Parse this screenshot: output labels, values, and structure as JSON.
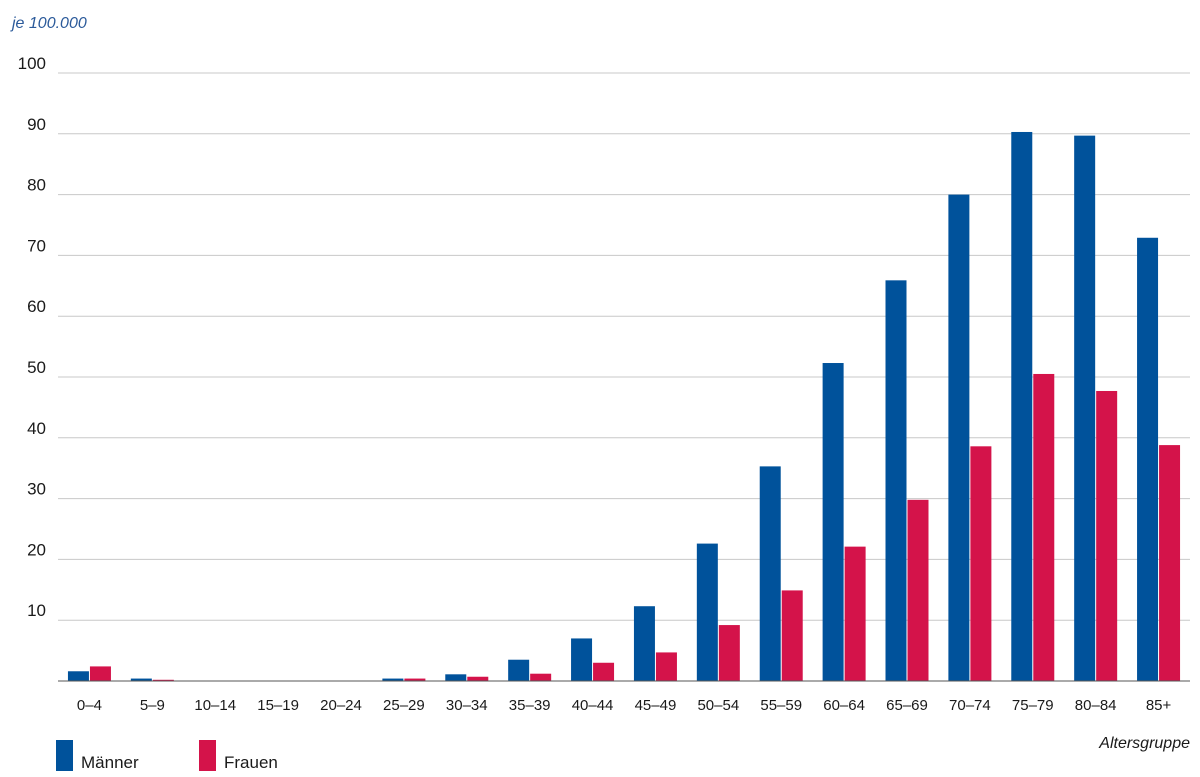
{
  "chart_data": {
    "type": "bar",
    "unit_label": "je 100.000",
    "xlabel": "Altersgruppe",
    "ylim": [
      0,
      100
    ],
    "yticks": [
      10,
      20,
      30,
      40,
      50,
      60,
      70,
      80,
      90,
      100
    ],
    "grid": true,
    "legend_position": "bottom-left",
    "categories": [
      "0–4",
      "5–9",
      "10–14",
      "15–19",
      "20–24",
      "25–29",
      "30–34",
      "35–39",
      "40–44",
      "45–49",
      "50–54",
      "55–59",
      "60–64",
      "65–69",
      "70–74",
      "75–79",
      "80–84",
      "85+"
    ],
    "series": [
      {
        "name": "Männer",
        "color": "#00529b",
        "values": [
          1.6,
          0.4,
          0,
          0,
          0,
          0.4,
          1.1,
          3.5,
          7.0,
          12.3,
          22.6,
          35.3,
          52.3,
          65.9,
          80.0,
          90.3,
          89.7,
          72.9
        ]
      },
      {
        "name": "Frauen",
        "color": "#d4134a",
        "values": [
          2.4,
          0.2,
          0,
          0,
          0,
          0.4,
          0.7,
          1.2,
          3.0,
          4.7,
          9.2,
          14.9,
          22.1,
          29.8,
          38.6,
          50.5,
          47.7,
          38.8
        ]
      }
    ]
  }
}
